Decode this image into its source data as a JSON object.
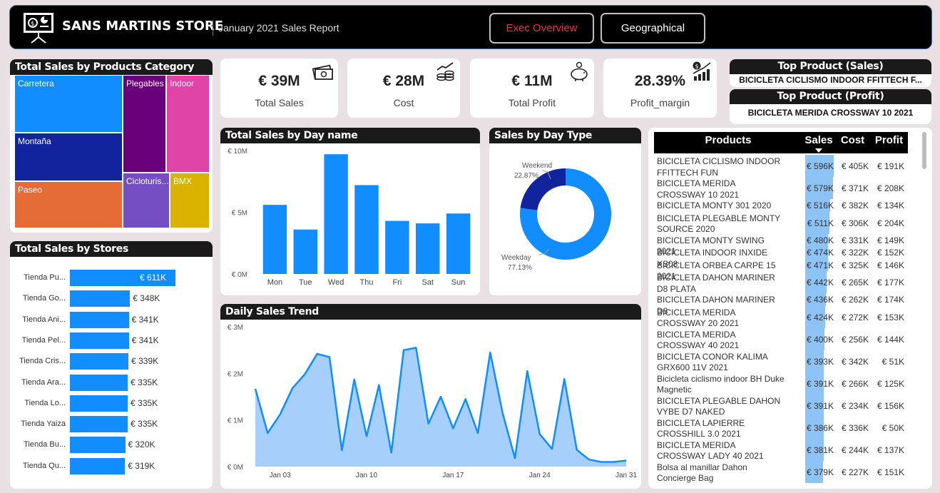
{
  "header": {
    "store_title": "SANS MARTINS STORE",
    "report_subtitle": "January 2021 Sales Report",
    "btn_exec": "Exec Overview",
    "btn_geo": "Geographical",
    "colors": {
      "active_nav": "#e8333a",
      "nav_text": "#ffffff"
    }
  },
  "kpis": [
    {
      "value": "€ 39M",
      "label": "Total Sales",
      "icon": "money-icon"
    },
    {
      "value": "€ 28M",
      "label": "Cost",
      "icon": "coins-growth-icon"
    },
    {
      "value": "€ 11M",
      "label": "Total Profit",
      "icon": "piggy-bank-icon"
    },
    {
      "value": "28.39%",
      "label": "Profit_margin",
      "icon": "chart-growth-icon"
    }
  ],
  "top_product": {
    "sales_title": "Top Product (Sales)",
    "sales_value": "BICICLETA CICLISMO INDOOR FFITTECH F...",
    "profit_title": "Top Product (Profit)",
    "profit_value": "BICICLETA MERIDA CROSSWAY 10 2021"
  },
  "treemap": {
    "title": "Total Sales by Products Category",
    "items": [
      {
        "label": "Carretera",
        "color": "#118dff"
      },
      {
        "label": "Montaña",
        "color": "#12239e"
      },
      {
        "label": "Paseo",
        "color": "#e66c37"
      },
      {
        "label": "Plegables",
        "color": "#6b007b"
      },
      {
        "label": "Indoor",
        "color": "#e044a7"
      },
      {
        "label": "Cicloturis...",
        "color": "#744ec2"
      },
      {
        "label": "BMX",
        "color": "#d9b300"
      }
    ]
  },
  "stores": {
    "title": "Total Sales by Stores",
    "items": [
      {
        "name": "Tienda Pu...",
        "label": "€ 611K",
        "value": 611
      },
      {
        "name": "Tienda Go...",
        "label": "€ 348K",
        "value": 348
      },
      {
        "name": "Tienda Ani...",
        "label": "€ 341K",
        "value": 341
      },
      {
        "name": "Tienda Pel...",
        "label": "€ 341K",
        "value": 341
      },
      {
        "name": "Tienda Cris...",
        "label": "€ 339K",
        "value": 339
      },
      {
        "name": "Tienda Ara...",
        "label": "€ 335K",
        "value": 335
      },
      {
        "name": "Tienda Lo...",
        "label": "€ 335K",
        "value": 335
      },
      {
        "name": "Tienda Yaiza",
        "label": "€ 335K",
        "value": 335
      },
      {
        "name": "Tienda Bu...",
        "label": "€ 320K",
        "value": 320
      },
      {
        "name": "Tienda Qu...",
        "label": "€ 319K",
        "value": 319
      }
    ]
  },
  "chart_data": [
    {
      "type": "bar",
      "title": "Total Sales by Day name",
      "categories": [
        "Mon",
        "Tue",
        "Wed",
        "Thu",
        "Fri",
        "Sat",
        "Sun"
      ],
      "values": [
        5.6,
        3.6,
        9.7,
        7.2,
        4.3,
        4.1,
        4.9
      ],
      "yticks": [
        "€ 0M",
        "€ 5M",
        "€ 10M"
      ],
      "ylim": [
        0,
        10
      ],
      "color": "#118dff"
    },
    {
      "type": "pie",
      "title": "Sales by Day Type",
      "slices": [
        {
          "name": "Weekday",
          "value": 77.13,
          "label": "77.13%",
          "color": "#118dff"
        },
        {
          "name": "Weekend",
          "value": 22.87,
          "label": "22.87%",
          "color": "#12239e"
        }
      ]
    },
    {
      "type": "area",
      "title": "Daily Sales Trend",
      "x": [
        1,
        2,
        3,
        4,
        5,
        6,
        7,
        8,
        9,
        10,
        11,
        12,
        13,
        14,
        15,
        16,
        17,
        18,
        19,
        20,
        21,
        22,
        23,
        24,
        25,
        26,
        27,
        28,
        29,
        30,
        31
      ],
      "values": [
        1.67,
        0.72,
        1.12,
        1.68,
        1.98,
        2.42,
        2.35,
        0.35,
        1.87,
        0.65,
        1.75,
        0.3,
        2.5,
        2.55,
        0.92,
        1.5,
        0.82,
        1.45,
        0.72,
        2.45,
        1.15,
        0.18,
        2.05,
        0.7,
        0.38,
        1.88,
        0.36,
        0.15,
        0.1,
        0.1,
        0.13
      ],
      "xticks": [
        "Jan 03",
        "Jan 10",
        "Jan 17",
        "Jan 24",
        "Jan 31"
      ],
      "yticks": [
        "€ 0M",
        "€ 1M",
        "€ 2M",
        "€ 3M"
      ],
      "ylim": [
        0,
        3
      ],
      "line_color": "#118dff",
      "fill_color": "#a6d0fb"
    }
  ],
  "products_table": {
    "headers": {
      "product": "Products",
      "sales": "Sales",
      "cost": "Cost",
      "profit": "Profit"
    },
    "rows": [
      {
        "product": "BICICLETA CICLISMO INDOOR FFITTECH FUN",
        "sales": "€ 596K",
        "cost": "€ 405K",
        "profit": "€ 191K",
        "sales_num": 596
      },
      {
        "product": "BICICLETA MERIDA CROSSWAY 10 2021",
        "sales": "€ 579K",
        "cost": "€ 371K",
        "profit": "€ 208K",
        "sales_num": 579
      },
      {
        "product": "BICICLETA MONTY 301 2020",
        "sales": "€ 516K",
        "cost": "€ 382K",
        "profit": "€ 134K",
        "sales_num": 516
      },
      {
        "product": "BICICLETA PLEGABLE MONTY SOURCE 2020",
        "sales": "€ 511K",
        "cost": "€ 306K",
        "profit": "€ 204K",
        "sales_num": 511
      },
      {
        "product": "BICICLETA MONTY SWING 2021",
        "sales": "€ 480K",
        "cost": "€ 331K",
        "profit": "€ 149K",
        "sales_num": 480
      },
      {
        "product": "BICICLETA INDOOR INXIDE XS08",
        "sales": "€ 474K",
        "cost": "€ 322K",
        "profit": "€ 152K",
        "sales_num": 474
      },
      {
        "product": "BICICLETA ORBEA CARPE 15 2021",
        "sales": "€ 471K",
        "cost": "€ 325K",
        "profit": "€ 146K",
        "sales_num": 471
      },
      {
        "product": "BICICLETA DAHON MARINER D8 PLATA",
        "sales": "€ 442K",
        "cost": "€ 265K",
        "profit": "€ 177K",
        "sales_num": 442
      },
      {
        "product": "BICICLETA DAHON MARINER D8",
        "sales": "€ 436K",
        "cost": "€ 262K",
        "profit": "€ 174K",
        "sales_num": 436
      },
      {
        "product": "BICICLETA MERIDA CROSSWAY 20 2021",
        "sales": "€ 424K",
        "cost": "€ 272K",
        "profit": "€ 153K",
        "sales_num": 424
      },
      {
        "product": "BICICLETA MERIDA CROSSWAY 40 2021",
        "sales": "€ 400K",
        "cost": "€ 256K",
        "profit": "€ 144K",
        "sales_num": 400
      },
      {
        "product": "BICICLETA CONOR KALIMA GRX600 11V 2021",
        "sales": "€ 393K",
        "cost": "€ 342K",
        "profit": "€ 51K",
        "sales_num": 393
      },
      {
        "product": "Bicicleta ciclismo indoor BH Duke Magnetic",
        "sales": "€ 391K",
        "cost": "€ 266K",
        "profit": "€ 125K",
        "sales_num": 391
      },
      {
        "product": "BICICLETA PLEGABLE DAHON VYBE D7 NAKED",
        "sales": "€ 391K",
        "cost": "€ 234K",
        "profit": "€ 156K",
        "sales_num": 391
      },
      {
        "product": "BICICLETA LAPIERRE CROSSHILL 3.0 2021",
        "sales": "€ 386K",
        "cost": "€ 336K",
        "profit": "€ 50K",
        "sales_num": 386
      },
      {
        "product": "BICICLETA MERIDA CROSSWAY LADY 40 2021",
        "sales": "€ 381K",
        "cost": "€ 244K",
        "profit": "€ 137K",
        "sales_num": 381
      },
      {
        "product": "Bolsa al manillar Dahon Concierge Bag",
        "sales": "€ 379K",
        "cost": "€ 227K",
        "profit": "€ 151K",
        "sales_num": 379
      }
    ]
  }
}
